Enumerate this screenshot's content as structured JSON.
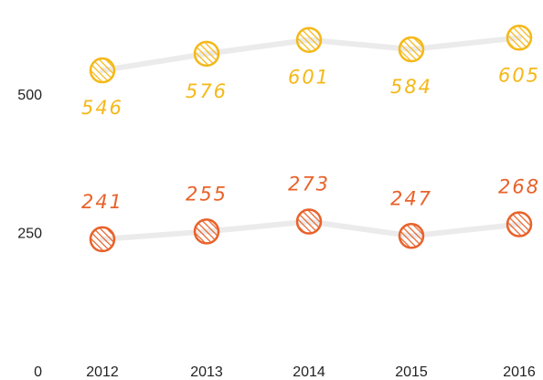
{
  "chart_data": {
    "type": "line",
    "categories": [
      "2012",
      "2013",
      "2014",
      "2015",
      "2016"
    ],
    "series": [
      {
        "color": "#f5b818",
        "values": [
          546,
          576,
          601,
          584,
          605
        ]
      },
      {
        "color": "#e8622a",
        "values": [
          241,
          255,
          273,
          247,
          268
        ]
      }
    ],
    "ylim": [
      0,
      650
    ],
    "yticks": [
      0,
      250,
      500
    ],
    "grid": false
  }
}
